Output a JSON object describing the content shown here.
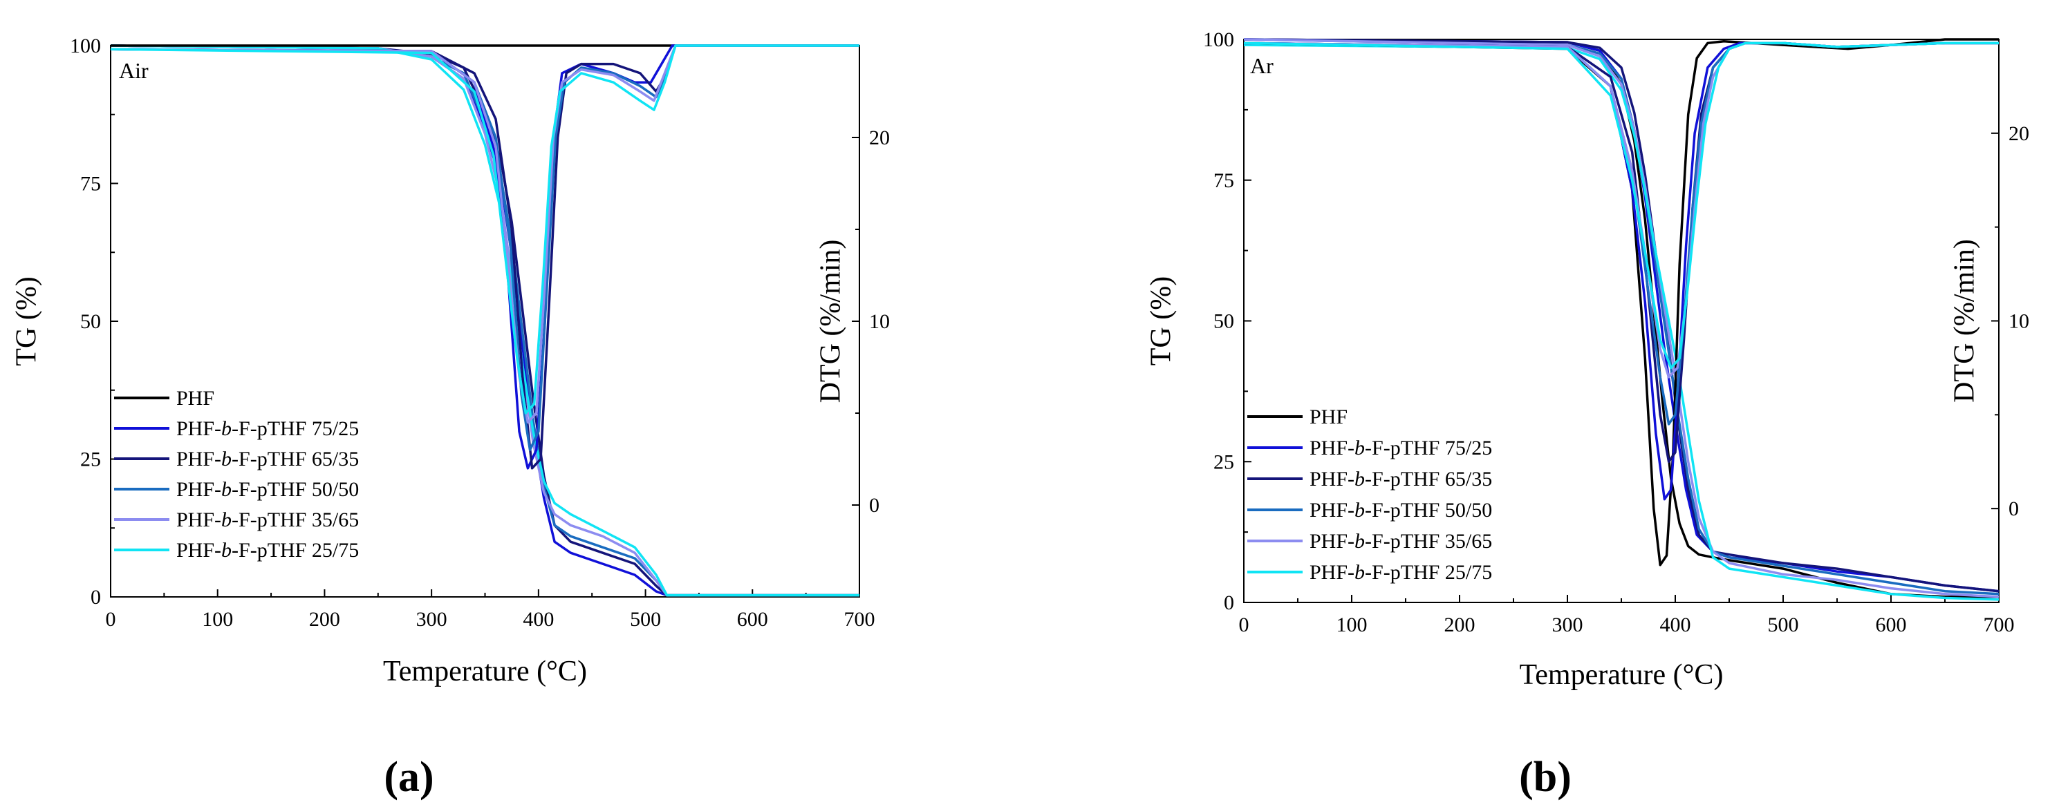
{
  "colors": {
    "PHF": "#000000",
    "PHF-b-F-pTHF 75/25": "#1010d8",
    "PHF-b-F-pTHF 65/35": "#14147a",
    "PHF-b-F-pTHF 50/50": "#1a6cc0",
    "PHF-b-F-pTHF 35/65": "#8c8cf0",
    "PHF-b-F-pTHF 25/75": "#10e4f4"
  },
  "legend": {
    "items": [
      {
        "pre": "PHF",
        "it": "",
        "post": ""
      },
      {
        "pre": "PHF-",
        "it": "b",
        "post": "-F-pTHF 75/25"
      },
      {
        "pre": "PHF-",
        "it": "b",
        "post": "-F-pTHF 65/35"
      },
      {
        "pre": "PHF-",
        "it": "b",
        "post": "-F-pTHF 50/50"
      },
      {
        "pre": "PHF-",
        "it": "b",
        "post": "-F-pTHF 35/65"
      },
      {
        "pre": "PHF-",
        "it": "b",
        "post": "-F-pTHF 25/75"
      }
    ]
  },
  "chart_data": [
    {
      "type": "line",
      "panel_label": "(a)",
      "annotation": "Air",
      "xlabel": "Temperature (°C)",
      "ylabel": "TG (%)",
      "y2label": "DTG (%/min)",
      "xlim": [
        0,
        700
      ],
      "ylim": [
        0,
        100
      ],
      "y2lim": [
        -5,
        25
      ],
      "xticks": [
        0,
        100,
        200,
        300,
        400,
        500,
        600,
        700
      ],
      "yticks": [
        0,
        25,
        50,
        75,
        100
      ],
      "y2ticks": [
        0,
        10,
        20
      ],
      "legend_position": "lower-left",
      "tg_series": [
        {
          "name": "PHF-b-F-pTHF 75/25",
          "x": [
            0,
            250,
            300,
            330,
            350,
            365,
            375,
            385,
            395,
            405,
            415,
            430,
            460,
            490,
            510,
            520,
            700
          ],
          "y": [
            100,
            99.5,
            98,
            94,
            85,
            75,
            62,
            45,
            30,
            18,
            10,
            8,
            6,
            4,
            1,
            0.3,
            0.3
          ]
        },
        {
          "name": "PHF-b-F-pTHF 65/35",
          "x": [
            0,
            250,
            300,
            330,
            350,
            365,
            375,
            385,
            395,
            405,
            415,
            430,
            460,
            490,
            510,
            520,
            700
          ],
          "y": [
            100,
            99.5,
            98.5,
            96,
            88,
            79,
            68,
            52,
            36,
            22,
            13,
            10,
            8,
            6,
            2,
            0.3,
            0.3
          ]
        },
        {
          "name": "PHF-b-F-pTHF 50/50",
          "x": [
            0,
            250,
            300,
            330,
            350,
            365,
            375,
            385,
            395,
            405,
            415,
            430,
            460,
            490,
            510,
            520,
            700
          ],
          "y": [
            100,
            99.5,
            98,
            95,
            86,
            76,
            64,
            48,
            32,
            20,
            13,
            11,
            9,
            7,
            3,
            0.3,
            0.3
          ]
        },
        {
          "name": "PHF-b-F-pTHF 35/65",
          "x": [
            0,
            250,
            300,
            330,
            350,
            365,
            375,
            385,
            395,
            405,
            415,
            430,
            460,
            490,
            510,
            520,
            700
          ],
          "y": [
            100,
            99.5,
            98,
            94,
            84,
            72,
            58,
            42,
            28,
            19,
            15,
            13,
            11,
            8,
            3,
            0.3,
            0.3
          ]
        },
        {
          "name": "PHF-b-F-pTHF 25/75",
          "x": [
            0,
            250,
            300,
            330,
            350,
            365,
            375,
            385,
            395,
            405,
            415,
            430,
            460,
            490,
            510,
            520,
            700
          ],
          "y": [
            100,
            99.5,
            97.5,
            92,
            82,
            70,
            57,
            42,
            30,
            21,
            17,
            15,
            12,
            9,
            4,
            0.3,
            0.3
          ]
        }
      ],
      "dtg_series": [
        {
          "name": "PHF",
          "x": [
            0,
            700
          ],
          "y": [
            25,
            25
          ]
        },
        {
          "name": "PHF-b-F-pTHF 75/25",
          "x": [
            0,
            300,
            340,
            360,
            372,
            382,
            390,
            398,
            406,
            414,
            422,
            440,
            470,
            490,
            505,
            515,
            525,
            700
          ],
          "y": [
            24.8,
            24.7,
            23,
            19,
            12,
            4,
            2,
            3,
            10,
            20,
            23.5,
            24,
            23.5,
            23,
            23,
            24,
            25,
            25
          ]
        },
        {
          "name": "PHF-b-F-pTHF 65/35",
          "x": [
            0,
            300,
            340,
            360,
            375,
            385,
            394,
            402,
            410,
            418,
            426,
            440,
            470,
            495,
            510,
            520,
            528,
            700
          ],
          "y": [
            24.8,
            24.7,
            23.5,
            21,
            15,
            7,
            2,
            2.5,
            11,
            20,
            23.5,
            24,
            24,
            23.5,
            22.5,
            23.5,
            25,
            25
          ]
        },
        {
          "name": "PHF-b-F-pTHF 50/50",
          "x": [
            0,
            300,
            340,
            360,
            374,
            384,
            392,
            400,
            408,
            416,
            424,
            440,
            470,
            495,
            510,
            520,
            528,
            700
          ],
          "y": [
            24.8,
            24.7,
            23,
            20,
            14,
            6,
            3,
            4,
            12,
            20,
            23,
            23.8,
            23.5,
            22.8,
            22.2,
            23.5,
            25,
            25
          ]
        },
        {
          "name": "PHF-b-F-pTHF 35/65",
          "x": [
            0,
            300,
            340,
            360,
            372,
            382,
            390,
            398,
            406,
            414,
            422,
            440,
            470,
            495,
            508,
            518,
            528,
            700
          ],
          "y": [
            24.8,
            24.7,
            23,
            19.5,
            13,
            7,
            4.5,
            5,
            12,
            20,
            23,
            23.7,
            23.4,
            22.5,
            22,
            23.5,
            25,
            25
          ]
        },
        {
          "name": "PHF-b-F-pTHF 25/75",
          "x": [
            0,
            300,
            340,
            358,
            370,
            380,
            388,
            396,
            404,
            412,
            420,
            440,
            470,
            495,
            508,
            518,
            528,
            700
          ],
          "y": [
            24.8,
            24.6,
            22.5,
            19,
            13,
            8,
            5,
            5.5,
            12,
            19.5,
            22.5,
            23.5,
            23,
            22,
            21.5,
            23,
            25,
            25
          ]
        }
      ]
    },
    {
      "type": "line",
      "panel_label": "(b)",
      "annotation": "Ar",
      "xlabel": "Temperature (°C)",
      "ylabel": "TG (%)",
      "y2label": "DTG (%/min)",
      "xlim": [
        0,
        700
      ],
      "ylim": [
        0,
        100
      ],
      "y2lim": [
        -5,
        25
      ],
      "xticks": [
        0,
        100,
        200,
        300,
        400,
        500,
        600,
        700
      ],
      "yticks": [
        0,
        25,
        50,
        75,
        100
      ],
      "y2ticks": [
        0,
        10,
        20
      ],
      "legend_position": "lower-left",
      "tg_series": [
        {
          "name": "PHF",
          "x": [
            0,
            300,
            330,
            350,
            362,
            372,
            380,
            388,
            396,
            404,
            412,
            422,
            435,
            450,
            500,
            550,
            600,
            650,
            700
          ],
          "y": [
            100,
            99.5,
            98,
            92,
            82,
            68,
            52,
            36,
            22,
            14,
            10,
            8.5,
            8,
            7.5,
            6,
            3.5,
            1.5,
            1,
            1
          ]
        },
        {
          "name": "PHF-b-F-pTHF 75/25",
          "x": [
            0,
            300,
            330,
            350,
            362,
            372,
            380,
            390,
            400,
            410,
            420,
            435,
            450,
            500,
            550,
            600,
            650,
            700
          ],
          "y": [
            100,
            99.5,
            98,
            93,
            84,
            72,
            60,
            45,
            32,
            20,
            12,
            9,
            8,
            7,
            5.5,
            4.5,
            3,
            2
          ]
        },
        {
          "name": "PHF-b-F-pTHF 65/35",
          "x": [
            0,
            300,
            330,
            350,
            362,
            372,
            382,
            392,
            402,
            412,
            422,
            435,
            450,
            500,
            550,
            600,
            650,
            700
          ],
          "y": [
            100,
            99.5,
            98.5,
            95,
            87,
            76,
            62,
            48,
            33,
            20,
            12,
            9,
            8.5,
            7,
            6,
            4.5,
            3,
            2
          ]
        },
        {
          "name": "PHF-b-F-pTHF 50/50",
          "x": [
            0,
            300,
            330,
            350,
            362,
            372,
            382,
            392,
            402,
            412,
            422,
            435,
            450,
            500,
            550,
            600,
            650,
            700
          ],
          "y": [
            100,
            99,
            97.5,
            93,
            84,
            73,
            60,
            47,
            34,
            22,
            13,
            9,
            8,
            6.5,
            5,
            3.5,
            2,
            1.5
          ]
        },
        {
          "name": "PHF-b-F-pTHF 35/65",
          "x": [
            0,
            300,
            330,
            350,
            362,
            372,
            382,
            392,
            402,
            412,
            422,
            435,
            450,
            500,
            550,
            600,
            650,
            700
          ],
          "y": [
            100,
            99,
            97,
            92,
            84,
            74,
            62,
            50,
            38,
            25,
            15,
            9,
            7,
            5,
            4,
            2.5,
            1.5,
            1
          ]
        },
        {
          "name": "PHF-b-F-pTHF 25/75",
          "x": [
            0,
            300,
            330,
            350,
            362,
            372,
            382,
            392,
            402,
            412,
            422,
            435,
            450,
            500,
            550,
            600,
            650,
            700
          ],
          "y": [
            99,
            98.5,
            96.5,
            91,
            83,
            73,
            62,
            52,
            42,
            30,
            18,
            8,
            6,
            4.5,
            3,
            1.5,
            0.8,
            0.5
          ]
        }
      ],
      "dtg_series": [
        {
          "name": "PHF",
          "x": [
            0,
            300,
            340,
            360,
            372,
            380,
            386,
            392,
            398,
            404,
            412,
            420,
            430,
            445,
            500,
            560,
            600,
            650,
            700
          ],
          "y": [
            24.8,
            24.5,
            22.5,
            17,
            8,
            0,
            -3,
            -2.5,
            3,
            13,
            21,
            24,
            24.8,
            24.9,
            24.7,
            24.5,
            24.7,
            25,
            25
          ]
        },
        {
          "name": "PHF-b-F-pTHF 75/25",
          "x": [
            0,
            300,
            340,
            360,
            372,
            382,
            390,
            396,
            402,
            410,
            418,
            430,
            445,
            460,
            500,
            550,
            600,
            650,
            700
          ],
          "y": [
            24.8,
            24.6,
            22.5,
            17,
            11,
            4,
            0.5,
            1,
            6,
            14,
            20,
            23.5,
            24.5,
            24.8,
            24.8,
            24.6,
            24.7,
            24.8,
            24.8
          ]
        },
        {
          "name": "PHF-b-F-pTHF 65/35",
          "x": [
            0,
            300,
            340,
            360,
            374,
            386,
            394,
            400,
            408,
            416,
            424,
            435,
            450,
            465,
            500,
            550,
            600,
            650,
            700
          ],
          "y": [
            24.8,
            24.6,
            23,
            19,
            12,
            5,
            2.5,
            3,
            9,
            16,
            21,
            23.5,
            24.5,
            24.8,
            24.8,
            24.6,
            24.7,
            24.8,
            24.8
          ]
        },
        {
          "name": "PHF-b-F-pTHF 50/50",
          "x": [
            0,
            300,
            340,
            360,
            374,
            386,
            394,
            400,
            408,
            416,
            424,
            435,
            450,
            465,
            500,
            550,
            600,
            650,
            700
          ],
          "y": [
            24.8,
            24.6,
            22.5,
            18,
            12,
            7,
            4.5,
            5,
            10,
            16,
            20.5,
            23.5,
            24.5,
            24.8,
            24.8,
            24.6,
            24.7,
            24.8,
            24.8
          ]
        },
        {
          "name": "PHF-b-F-pTHF 35/65",
          "x": [
            0,
            300,
            340,
            360,
            374,
            386,
            394,
            402,
            410,
            418,
            426,
            435,
            450,
            465,
            500,
            550,
            600,
            650,
            700
          ],
          "y": [
            24.8,
            24.6,
            22.5,
            18,
            13,
            8.5,
            7,
            7.5,
            11,
            16,
            20.5,
            23,
            24.5,
            24.8,
            24.8,
            24.6,
            24.7,
            24.8,
            24.8
          ]
        },
        {
          "name": "PHF-b-F-pTHF 25/75",
          "x": [
            0,
            300,
            340,
            360,
            374,
            386,
            396,
            404,
            412,
            420,
            428,
            440,
            450,
            465,
            500,
            550,
            600,
            650,
            700
          ],
          "y": [
            24.8,
            24.5,
            22,
            17.5,
            13,
            9,
            7.5,
            8,
            12,
            16.5,
            20.5,
            23.5,
            24.5,
            24.8,
            24.8,
            24.6,
            24.7,
            24.8,
            24.8
          ]
        }
      ]
    }
  ]
}
